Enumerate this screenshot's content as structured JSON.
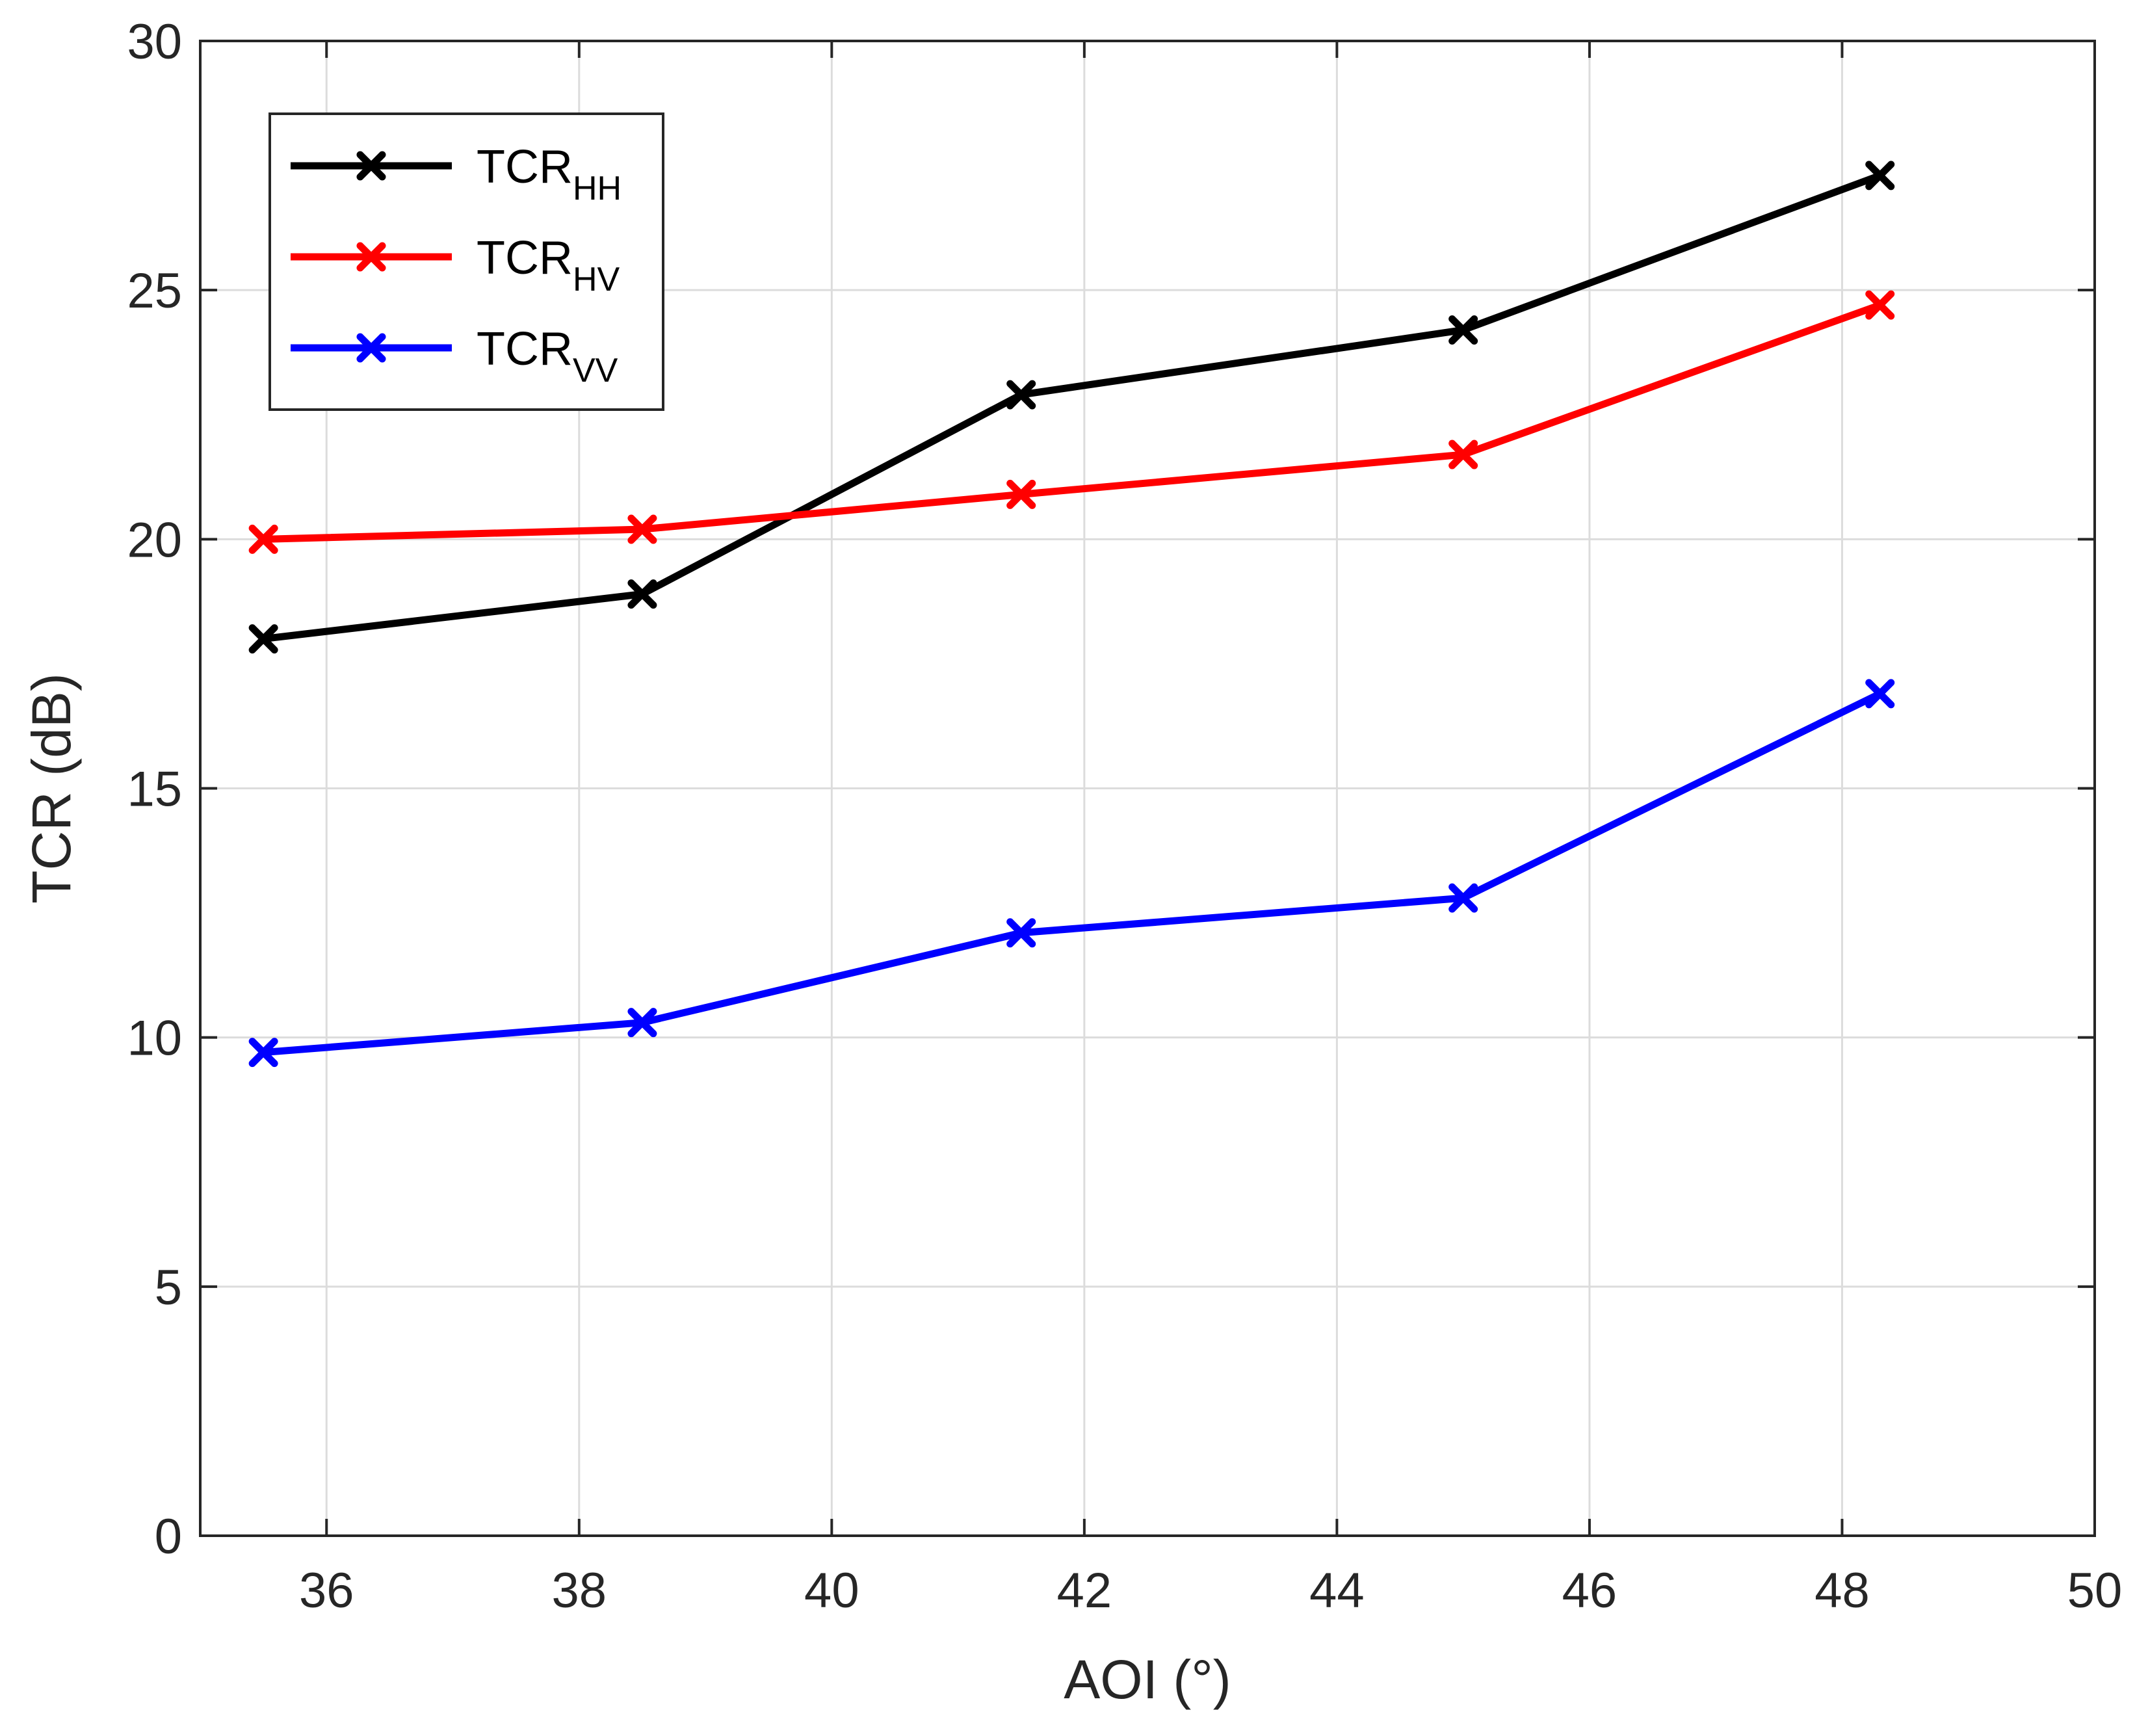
{
  "chart_data": {
    "type": "line",
    "xlabel": "AOI (°)",
    "ylabel": "TCR (dB)",
    "xlim": [
      35,
      50
    ],
    "ylim": [
      0,
      30
    ],
    "xticks": [
      36,
      38,
      40,
      42,
      44,
      46,
      48,
      50
    ],
    "yticks": [
      0,
      5,
      10,
      15,
      20,
      25,
      30
    ],
    "grid": true,
    "legend_position": "top-left",
    "x": [
      35.5,
      38.5,
      41.5,
      45.0,
      48.3
    ],
    "series": [
      {
        "name": "TCR",
        "subscript": "HH",
        "color": "#000000",
        "marker": "x",
        "values": [
          18.0,
          18.9,
          22.9,
          24.2,
          27.3
        ]
      },
      {
        "name": "TCR",
        "subscript": "HV",
        "color": "#ff0000",
        "marker": "x",
        "values": [
          20.0,
          20.2,
          20.9,
          21.7,
          24.7
        ]
      },
      {
        "name": "TCR",
        "subscript": "VV",
        "color": "#0000ff",
        "marker": "x",
        "values": [
          9.7,
          10.3,
          12.1,
          12.8,
          16.9
        ]
      }
    ]
  }
}
